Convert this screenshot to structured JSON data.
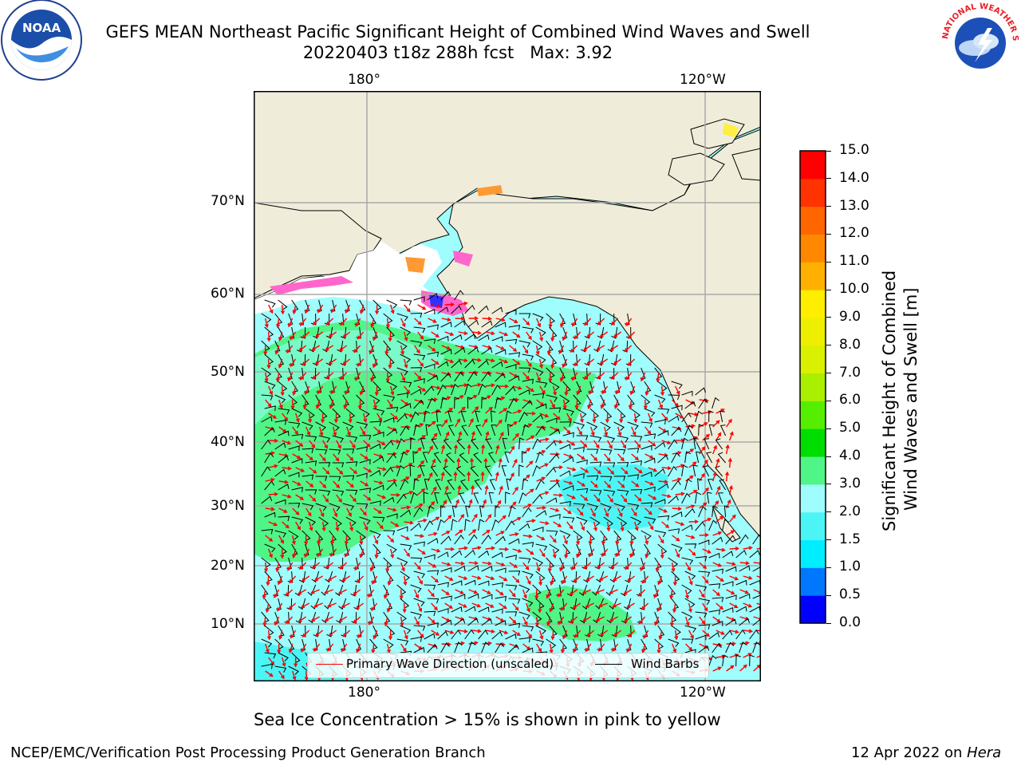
{
  "title": {
    "line1": "GEFS MEAN Northeast Pacific Significant Height of Combined Wind Waves and Swell",
    "line2": "20220403 t18z 288h fcst   Max: 3.92"
  },
  "map": {
    "lon_ticks": [
      "180°",
      "120°W"
    ],
    "lat_ticks": [
      "70°N",
      "60°N",
      "50°N",
      "40°N",
      "30°N",
      "20°N",
      "10°N"
    ],
    "colors": {
      "land": "#efedd9",
      "ocean_low": "#9ffdfd",
      "ocean_mid": "#4cf5f5",
      "ocean_high": "#4ff587",
      "ice_pink": "#ff66cc",
      "ice_orange": "#ff9933",
      "ice_yellow": "#ffee44",
      "arrows": "#ff0000",
      "barbs": "#000000"
    },
    "legend": {
      "items": [
        {
          "label": "Primary Wave Direction (unscaled)",
          "color": "#ff0000"
        },
        {
          "label": "Wind Barbs",
          "color": "#000000"
        }
      ]
    }
  },
  "colorbar": {
    "label_line1": "Significant Height of Combined",
    "label_line2": "Wind Waves and Swell [m]",
    "levels": [
      "0.0",
      "0.5",
      "1.0",
      "1.5",
      "2.0",
      "3.0",
      "4.0",
      "5.0",
      "6.0",
      "7.0",
      "8.0",
      "9.0",
      "10.0",
      "11.0",
      "12.0",
      "13.0",
      "14.0",
      "15.0"
    ],
    "colors": [
      "#0000ff",
      "#0077ff",
      "#00eeff",
      "#4cf5f5",
      "#9ffdfd",
      "#4ff587",
      "#00dd00",
      "#55ee00",
      "#aaee00",
      "#d9f000",
      "#eeee00",
      "#ffee00",
      "#ffb000",
      "#ff8800",
      "#ff6600",
      "#ff3300",
      "#ff0000"
    ]
  },
  "note": "Sea Ice Concentration > 15% is shown in pink to yellow",
  "footer": {
    "left": "NCEP/EMC/Verification Post Processing Product Generation Branch",
    "date": "12 Apr 2022 on ",
    "host": "Hera"
  },
  "logos": {
    "noaa_text": "NOAA",
    "nws_text": "NATIONAL WEATHER SERVICE"
  }
}
